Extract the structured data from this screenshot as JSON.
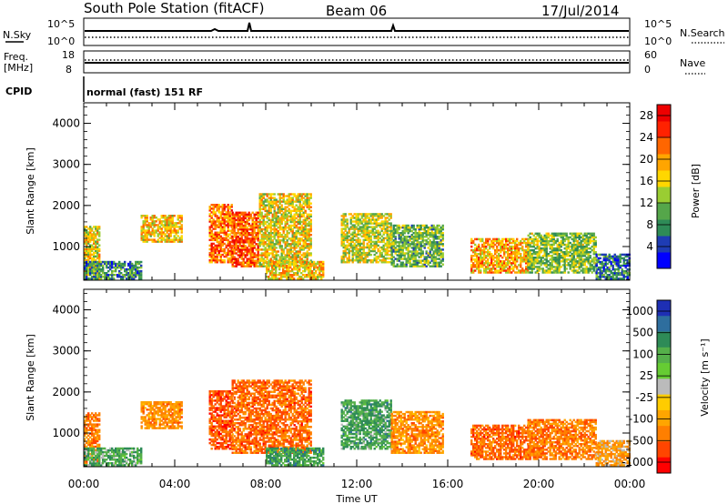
{
  "header": {
    "station": "South Pole Station (fitACF)",
    "beam": "Beam 06",
    "date": "17/Jul/2014"
  },
  "aux": {
    "nsky_label": "N.Sky",
    "nsky_top": "10^5",
    "nsky_bottom": "10^0",
    "nsearch_label": "N.Search",
    "nsearch_top": "10^5",
    "nsearch_bottom": "10^0",
    "freq_label": "Freq.",
    "freq_unit": "[MHz]",
    "freq_top": "18",
    "freq_bottom": "8",
    "nave_label": "Nave",
    "nave_top": "60",
    "nave_bottom": "0",
    "cpid_label": "CPID",
    "cpid_value": "normal (fast) 151 RF"
  },
  "colors": {
    "power": [
      "#0000ff",
      "#1e3cb4",
      "#2e8b57",
      "#55a64a",
      "#9acd32",
      "#ffd700",
      "#ffa500",
      "#ff6600",
      "#ff2200",
      "#ee0000"
    ],
    "velocity_pos": [
      "#1e2fb4",
      "#2e6e9e",
      "#2e8b57",
      "#55b04a",
      "#66cc33"
    ],
    "velocity_neg": [
      "#ffcc00",
      "#ffa500",
      "#ff7f00",
      "#ff4500",
      "#ff0000"
    ],
    "ground_scatter": "#bbbbbb"
  },
  "chart_data": [
    {
      "type": "heatmap",
      "panel": "power",
      "xlabel": "",
      "ylabel": "Slant Range [km]",
      "y_ticks": [
        "1000",
        "2000",
        "3000",
        "4000"
      ],
      "ylim": [
        180,
        4500
      ],
      "colorbar_label": "Power [dB]",
      "colorbar_ticks": [
        "4",
        "8",
        "12",
        "16",
        "20",
        "24",
        "28"
      ],
      "colorbar_range": [
        0,
        30
      ],
      "regions": [
        {
          "t0": 0.0,
          "t1": 0.7,
          "r0": 200,
          "r1": 1500,
          "level": 0.55
        },
        {
          "t0": 0.0,
          "t1": 2.5,
          "r0": 200,
          "r1": 650,
          "level": 0.25
        },
        {
          "t0": 2.5,
          "t1": 4.3,
          "r0": 1100,
          "r1": 1750,
          "level": 0.6
        },
        {
          "t0": 5.5,
          "t1": 6.5,
          "r0": 600,
          "r1": 2000,
          "level": 0.75
        },
        {
          "t0": 6.5,
          "t1": 7.7,
          "r0": 500,
          "r1": 1850,
          "level": 0.82
        },
        {
          "t0": 7.7,
          "t1": 10.0,
          "r0": 500,
          "r1": 2300,
          "level": 0.55
        },
        {
          "t0": 8.0,
          "t1": 10.5,
          "r0": 200,
          "r1": 650,
          "level": 0.6
        },
        {
          "t0": 11.3,
          "t1": 13.5,
          "r0": 600,
          "r1": 1800,
          "level": 0.5
        },
        {
          "t0": 13.5,
          "t1": 15.8,
          "r0": 500,
          "r1": 1500,
          "level": 0.35
        },
        {
          "t0": 17.0,
          "t1": 19.5,
          "r0": 350,
          "r1": 1200,
          "level": 0.65
        },
        {
          "t0": 19.5,
          "t1": 22.5,
          "r0": 350,
          "r1": 1300,
          "level": 0.4
        },
        {
          "t0": 22.5,
          "t1": 24.0,
          "r0": 200,
          "r1": 800,
          "level": 0.2
        }
      ]
    },
    {
      "type": "heatmap",
      "panel": "velocity",
      "xlabel": "Time UT",
      "ylabel": "Slant Range [km]",
      "x_ticks": [
        "00:00",
        "04:00",
        "08:00",
        "12:00",
        "16:00",
        "20:00",
        "00:00"
      ],
      "y_ticks": [
        "1000",
        "2000",
        "3000",
        "4000"
      ],
      "ylim": [
        180,
        4500
      ],
      "colorbar_label": "Velocity [m s⁻¹]",
      "colorbar_ticks": [
        "1000",
        "500",
        "100",
        "25",
        "-25",
        "-100",
        "-500",
        "-1000"
      ],
      "colorbar_range": [
        -1000,
        1000
      ],
      "regions": [
        {
          "t0": 0.0,
          "t1": 0.7,
          "r0": 200,
          "r1": 1500,
          "level": -0.5
        },
        {
          "t0": 0.0,
          "t1": 2.5,
          "r0": 200,
          "r1": 650,
          "level": 0.3
        },
        {
          "t0": 2.5,
          "t1": 4.3,
          "r0": 1100,
          "r1": 1750,
          "level": -0.4
        },
        {
          "t0": 5.5,
          "t1": 6.5,
          "r0": 600,
          "r1": 2000,
          "level": -0.7
        },
        {
          "t0": 6.5,
          "t1": 10.0,
          "r0": 500,
          "r1": 2300,
          "level": -0.6
        },
        {
          "t0": 8.0,
          "t1": 10.5,
          "r0": 200,
          "r1": 650,
          "level": 0.4
        },
        {
          "t0": 11.3,
          "t1": 13.5,
          "r0": 600,
          "r1": 1800,
          "level": 0.35
        },
        {
          "t0": 13.5,
          "t1": 15.8,
          "r0": 500,
          "r1": 1500,
          "level": -0.4
        },
        {
          "t0": 17.0,
          "t1": 19.5,
          "r0": 350,
          "r1": 1200,
          "level": -0.6
        },
        {
          "t0": 19.5,
          "t1": 22.5,
          "r0": 350,
          "r1": 1300,
          "level": -0.5
        },
        {
          "t0": 22.5,
          "t1": 24.0,
          "r0": 200,
          "r1": 800,
          "level": -0.3
        }
      ]
    }
  ]
}
